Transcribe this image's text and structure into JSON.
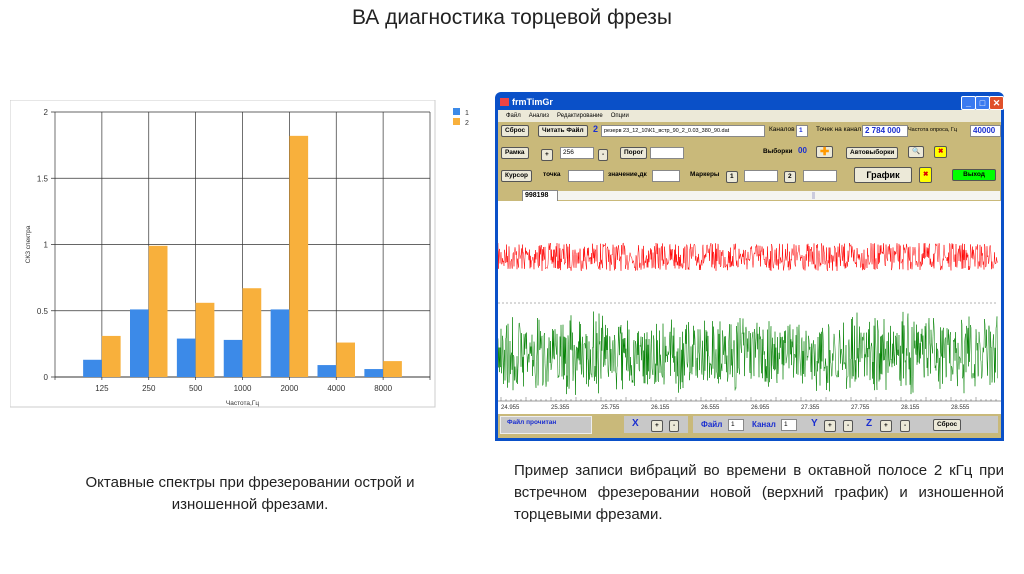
{
  "slide": {
    "title": "ВА диагностика торцевой фрезы",
    "caption_left": "Октавные спектры при фрезеровании острой и изношенной фрезами.",
    "caption_right": "Пример записи вибраций во времени в октавной полосе 2 кГц при встречном фрезеровании новой (верхний график) и изношенной торцевыми фрезами."
  },
  "chart_data": {
    "type": "bar",
    "categories": [
      "125",
      "250",
      "500",
      "1000",
      "2000",
      "4000",
      "8000"
    ],
    "series": [
      {
        "name": "1",
        "values": [
          0.13,
          0.51,
          0.29,
          0.28,
          0.51,
          0.09,
          0.06
        ],
        "color": "#3c8ae8"
      },
      {
        "name": "2",
        "values": [
          0.31,
          0.99,
          0.56,
          0.67,
          1.82,
          0.26,
          0.12
        ],
        "color": "#f8b03c"
      }
    ],
    "xlabel": "Частота,Гц",
    "ylabel": "СКЗ спектра",
    "ylim": [
      0,
      2
    ],
    "yticks": [
      "0",
      "0.5",
      "1",
      "1.5",
      "2"
    ],
    "grid": true,
    "legend": "top-right"
  },
  "app": {
    "title": "frmTimGr",
    "menu": [
      "Файл",
      "Анализ",
      "Редактирование",
      "Опции"
    ],
    "reset": "Сброс",
    "read_file": "Читать Файл",
    "file_num": "2",
    "file": "резерв 23_12_10\\К1_встр_90_2_0.03_380_90.dat",
    "channels_label": "Каналов",
    "channels": "1",
    "points_label": "Точек на канал",
    "points": "2 784 000",
    "rate_label": "Частота опроса, Гц",
    "rate": "40000",
    "frame": "Рамка",
    "plus": "+",
    "minus": "-",
    "frame_value": "256",
    "threshold": "Порог",
    "samples_label": "Выборки",
    "samples": "00",
    "autosamples": "Автовыборки",
    "cursor": "Курсор",
    "point_label": "точка",
    "value_label": "значение,дк",
    "markers_label": "Маркеры",
    "m1": "1",
    "m2": "2",
    "graph": "График",
    "exit": "Выход",
    "position": "998198",
    "time_ticks": [
      "24.955",
      "25.355",
      "25.755",
      "26.155",
      "26.555",
      "26.955",
      "27.355",
      "27.755",
      "28.155",
      "28.555"
    ],
    "status": "Файл прочитан",
    "x": "X",
    "file_label": "Файл",
    "file_spin": "1",
    "channel_label": "Канал",
    "channel_spin": "1",
    "y": "Y",
    "z": "Z",
    "signal_colors": [
      "#ff0000",
      "#008000"
    ]
  }
}
